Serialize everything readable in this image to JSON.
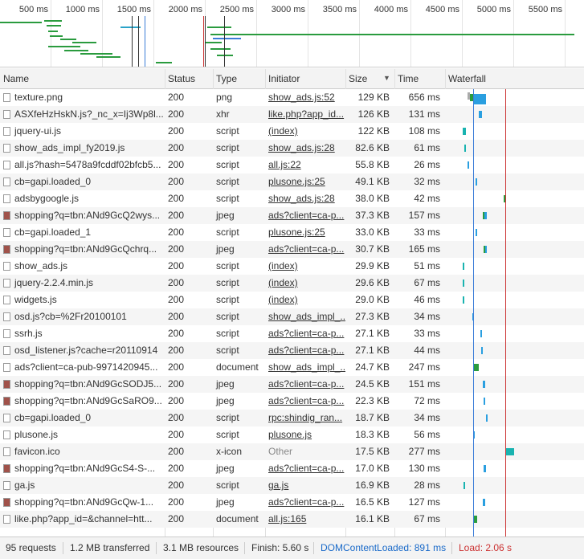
{
  "overview": {
    "ticks": [
      "500 ms",
      "1000 ms",
      "1500 ms",
      "2000 ms",
      "2500 ms",
      "3000 ms",
      "3500 ms",
      "4000 ms",
      "4500 ms",
      "5000 ms",
      "5500 ms"
    ]
  },
  "table": {
    "columns": [
      "Name",
      "Status",
      "Type",
      "Initiator",
      "Size",
      "Time",
      "Waterfall"
    ],
    "rows": [
      [
        "texture.png",
        "200",
        "png",
        "show_ads.js:52",
        "129 KB",
        "656 ms"
      ],
      [
        "ASXfeHzHskN.js?_nc_x=Ij3Wp8l...",
        "200",
        "xhr",
        "like.php?app_id...",
        "126 KB",
        "131 ms"
      ],
      [
        "jquery-ui.js",
        "200",
        "script",
        "(index)",
        "122 KB",
        "108 ms"
      ],
      [
        "show_ads_impl_fy2019.js",
        "200",
        "script",
        "show_ads.js:28",
        "82.6 KB",
        "61 ms"
      ],
      [
        "all.js?hash=5478a9fcddf02bfcb5...",
        "200",
        "script",
        "all.js:22",
        "55.8 KB",
        "26 ms"
      ],
      [
        "cb=gapi.loaded_0",
        "200",
        "script",
        "plusone.js:25",
        "49.1 KB",
        "32 ms"
      ],
      [
        "adsbygoogle.js",
        "200",
        "script",
        "show_ads.js:28",
        "38.0 KB",
        "42 ms"
      ],
      [
        "shopping?q=tbn:ANd9GcQ2wys...",
        "200",
        "jpeg",
        "ads?client=ca-p...",
        "37.3 KB",
        "157 ms"
      ],
      [
        "cb=gapi.loaded_1",
        "200",
        "script",
        "plusone.js:25",
        "33.0 KB",
        "33 ms"
      ],
      [
        "shopping?q=tbn:ANd9GcQchrq...",
        "200",
        "jpeg",
        "ads?client=ca-p...",
        "30.7 KB",
        "165 ms"
      ],
      [
        "show_ads.js",
        "200",
        "script",
        "(index)",
        "29.9 KB",
        "51 ms"
      ],
      [
        "jquery-2.2.4.min.js",
        "200",
        "script",
        "(index)",
        "29.6 KB",
        "67 ms"
      ],
      [
        "widgets.js",
        "200",
        "script",
        "(index)",
        "29.0 KB",
        "46 ms"
      ],
      [
        "osd.js?cb=%2Fr20100101",
        "200",
        "script",
        "show_ads_impl_...",
        "27.3 KB",
        "34 ms"
      ],
      [
        "ssrh.js",
        "200",
        "script",
        "ads?client=ca-p...",
        "27.1 KB",
        "33 ms"
      ],
      [
        "osd_listener.js?cache=r20110914",
        "200",
        "script",
        "ads?client=ca-p...",
        "27.1 KB",
        "44 ms"
      ],
      [
        "ads?client=ca-pub-9971420945...",
        "200",
        "document",
        "show_ads_impl_...",
        "24.7 KB",
        "247 ms"
      ],
      [
        "shopping?q=tbn:ANd9GcSODJ5...",
        "200",
        "jpeg",
        "ads?client=ca-p...",
        "24.5 KB",
        "151 ms"
      ],
      [
        "shopping?q=tbn:ANd9GcSaRO9...",
        "200",
        "jpeg",
        "ads?client=ca-p...",
        "22.3 KB",
        "72 ms"
      ],
      [
        "cb=gapi.loaded_0",
        "200",
        "script",
        "rpc:shindig_ran...",
        "18.7 KB",
        "34 ms"
      ],
      [
        "plusone.js",
        "200",
        "script",
        "plusone.js",
        "18.3 KB",
        "56 ms"
      ],
      [
        "favicon.ico",
        "200",
        "x-icon",
        "Other",
        "17.5 KB",
        "277 ms"
      ],
      [
        "shopping?q=tbn:ANd9GcS4-S-...",
        "200",
        "jpeg",
        "ads?client=ca-p...",
        "17.0 KB",
        "130 ms"
      ],
      [
        "ga.js",
        "200",
        "script",
        "ga.js",
        "16.9 KB",
        "28 ms"
      ],
      [
        "shopping?q=tbn:ANd9GcQw-1...",
        "200",
        "jpeg",
        "ads?client=ca-p...",
        "16.5 KB",
        "127 ms"
      ],
      [
        "like.php?app_id=&channel=htt...",
        "200",
        "document",
        "all.js:165",
        "16.1 KB",
        "67 ms"
      ]
    ]
  },
  "status_bar": [
    "95 requests",
    "1.2 MB transferred",
    "3.1 MB resources",
    "Finish: 5.60 s",
    "DOMContentLoaded: 891 ms",
    "Load: 2.06 s"
  ]
}
